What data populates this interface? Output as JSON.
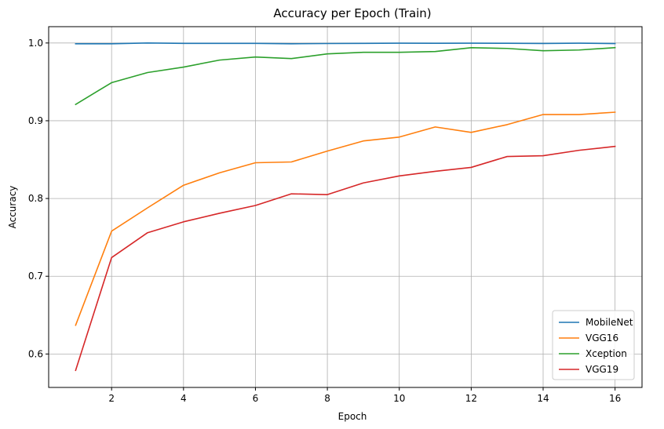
{
  "chart_data": {
    "type": "line",
    "title": "Accuracy per Epoch (Train)",
    "xlabel": "Epoch",
    "ylabel": "Accuracy",
    "x": [
      1,
      2,
      3,
      4,
      5,
      6,
      7,
      8,
      9,
      10,
      11,
      12,
      13,
      14,
      15,
      16
    ],
    "xlim": [
      0.25,
      16.75
    ],
    "ylim": [
      0.557,
      1.021
    ],
    "xticks": [
      2,
      4,
      6,
      8,
      10,
      12,
      14,
      16
    ],
    "yticks": [
      0.6,
      0.7,
      0.8,
      0.9,
      1.0
    ],
    "xtick_labels": [
      "2",
      "4",
      "6",
      "8",
      "10",
      "12",
      "14",
      "16"
    ],
    "ytick_labels": [
      "0.6",
      "0.7",
      "0.8",
      "0.9",
      "1.0"
    ],
    "grid": true,
    "legend_position": "bottom-right",
    "series": [
      {
        "name": "MobileNet",
        "color": "#1f77b4",
        "values": [
          0.999,
          0.999,
          1.0,
          0.9995,
          0.9995,
          0.9995,
          0.999,
          0.9993,
          0.9995,
          0.9998,
          0.9996,
          0.9998,
          0.9996,
          0.9994,
          0.9998,
          0.9993
        ]
      },
      {
        "name": "VGG16",
        "color": "#ff7f0e",
        "values": [
          0.637,
          0.758,
          0.788,
          0.817,
          0.833,
          0.846,
          0.847,
          0.861,
          0.874,
          0.879,
          0.892,
          0.885,
          0.895,
          0.908,
          0.908,
          0.911
        ]
      },
      {
        "name": "Xception",
        "color": "#2ca02c",
        "values": [
          0.921,
          0.949,
          0.962,
          0.969,
          0.978,
          0.982,
          0.98,
          0.986,
          0.988,
          0.988,
          0.989,
          0.994,
          0.993,
          0.99,
          0.991,
          0.994
        ]
      },
      {
        "name": "VGG19",
        "color": "#d62728",
        "values": [
          0.579,
          0.724,
          0.756,
          0.77,
          0.781,
          0.791,
          0.806,
          0.805,
          0.82,
          0.829,
          0.835,
          0.84,
          0.854,
          0.855,
          0.862,
          0.867
        ]
      }
    ]
  }
}
